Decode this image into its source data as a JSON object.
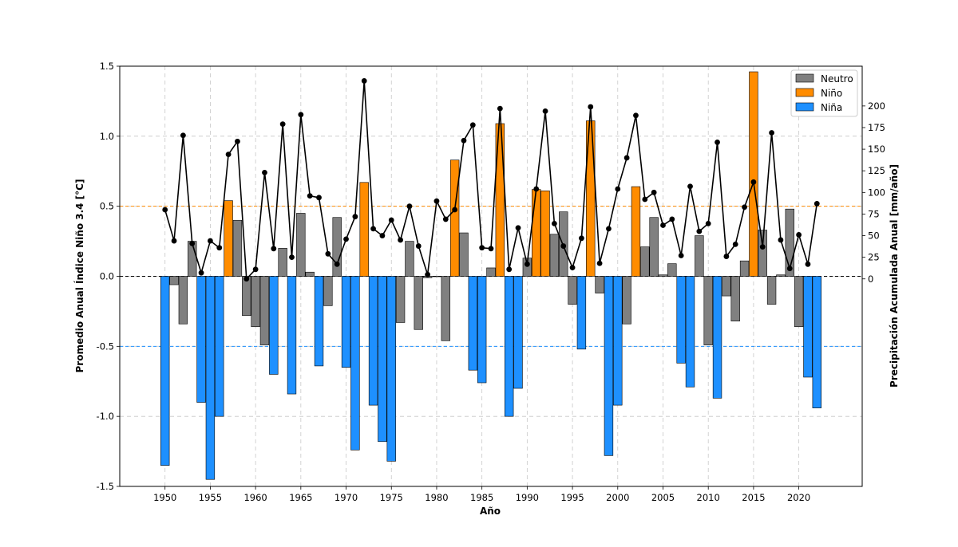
{
  "chart_data": {
    "type": "bar",
    "title": "",
    "xlabel": "Año",
    "ylabel_left": "Promedio Anual Índice Niño 3.4 [°C]",
    "ylabel_right": "Precipitación Acumulada Anual [mm/año]",
    "xlim": [
      1945,
      2027
    ],
    "ylim_left": [
      -1.5,
      1.5
    ],
    "ylim_right": [
      -240,
      246
    ],
    "x_ticks": [
      1950,
      1955,
      1960,
      1965,
      1970,
      1975,
      1980,
      1985,
      1990,
      1995,
      2000,
      2005,
      2010,
      2015,
      2020
    ],
    "y_ticks_left": [
      "-1.5",
      "-1.0",
      "-0.5",
      "0.0",
      "0.5",
      "1.0",
      "1.5"
    ],
    "y_ticks_right": [
      "0",
      "25",
      "50",
      "75",
      "100",
      "125",
      "150",
      "175",
      "200"
    ],
    "grid": true,
    "legend_position": "top-right",
    "thresholds": [
      {
        "value": 0.5,
        "color": "#ff8c00",
        "style": "dashed"
      },
      {
        "value": -0.5,
        "color": "#1e90ff",
        "style": "dashed"
      },
      {
        "value": 0,
        "color": "#000000",
        "style": "dashed"
      }
    ],
    "classes": {
      "Neutro": {
        "label": "Neutro",
        "color": "#808080"
      },
      "Nino": {
        "label": "Niño",
        "color": "#ff8c00"
      },
      "Nina": {
        "label": "Niña",
        "color": "#1e90ff"
      }
    },
    "legend": [
      "Neutro",
      "Niño",
      "Niña"
    ],
    "bars": [
      {
        "year": 1950,
        "value": -1.35,
        "class": "Nina"
      },
      {
        "year": 1951,
        "value": -0.06,
        "class": "Neutro"
      },
      {
        "year": 1952,
        "value": -0.34,
        "class": "Neutro"
      },
      {
        "year": 1953,
        "value": 0.25,
        "class": "Neutro"
      },
      {
        "year": 1954,
        "value": -0.9,
        "class": "Nina"
      },
      {
        "year": 1955,
        "value": -1.45,
        "class": "Nina"
      },
      {
        "year": 1956,
        "value": -1.0,
        "class": "Nina"
      },
      {
        "year": 1957,
        "value": 0.54,
        "class": "Nino"
      },
      {
        "year": 1958,
        "value": 0.4,
        "class": "Neutro"
      },
      {
        "year": 1959,
        "value": -0.28,
        "class": "Neutro"
      },
      {
        "year": 1960,
        "value": -0.36,
        "class": "Neutro"
      },
      {
        "year": 1961,
        "value": -0.49,
        "class": "Neutro"
      },
      {
        "year": 1962,
        "value": -0.7,
        "class": "Nina"
      },
      {
        "year": 1963,
        "value": 0.2,
        "class": "Neutro"
      },
      {
        "year": 1964,
        "value": -0.84,
        "class": "Nina"
      },
      {
        "year": 1965,
        "value": 0.45,
        "class": "Neutro"
      },
      {
        "year": 1966,
        "value": 0.03,
        "class": "Neutro"
      },
      {
        "year": 1967,
        "value": -0.64,
        "class": "Nina"
      },
      {
        "year": 1968,
        "value": -0.21,
        "class": "Neutro"
      },
      {
        "year": 1969,
        "value": 0.42,
        "class": "Neutro"
      },
      {
        "year": 1970,
        "value": -0.65,
        "class": "Nina"
      },
      {
        "year": 1971,
        "value": -1.24,
        "class": "Nina"
      },
      {
        "year": 1972,
        "value": 0.67,
        "class": "Nino"
      },
      {
        "year": 1973,
        "value": -0.92,
        "class": "Nina"
      },
      {
        "year": 1974,
        "value": -1.18,
        "class": "Nina"
      },
      {
        "year": 1975,
        "value": -1.32,
        "class": "Nina"
      },
      {
        "year": 1976,
        "value": -0.33,
        "class": "Neutro"
      },
      {
        "year": 1977,
        "value": 0.25,
        "class": "Neutro"
      },
      {
        "year": 1978,
        "value": -0.38,
        "class": "Neutro"
      },
      {
        "year": 1979,
        "value": -0.01,
        "class": "Neutro"
      },
      {
        "year": 1980,
        "value": 0.0,
        "class": "Neutro"
      },
      {
        "year": 1981,
        "value": -0.46,
        "class": "Neutro"
      },
      {
        "year": 1982,
        "value": 0.83,
        "class": "Nino"
      },
      {
        "year": 1983,
        "value": 0.31,
        "class": "Neutro"
      },
      {
        "year": 1984,
        "value": -0.67,
        "class": "Nina"
      },
      {
        "year": 1985,
        "value": -0.76,
        "class": "Nina"
      },
      {
        "year": 1986,
        "value": 0.06,
        "class": "Neutro"
      },
      {
        "year": 1987,
        "value": 1.09,
        "class": "Nino"
      },
      {
        "year": 1988,
        "value": -1.0,
        "class": "Nina"
      },
      {
        "year": 1989,
        "value": -0.8,
        "class": "Nina"
      },
      {
        "year": 1990,
        "value": 0.13,
        "class": "Neutro"
      },
      {
        "year": 1991,
        "value": 0.62,
        "class": "Nino"
      },
      {
        "year": 1992,
        "value": 0.61,
        "class": "Nino"
      },
      {
        "year": 1993,
        "value": 0.3,
        "class": "Neutro"
      },
      {
        "year": 1994,
        "value": 0.46,
        "class": "Neutro"
      },
      {
        "year": 1995,
        "value": -0.2,
        "class": "Neutro"
      },
      {
        "year": 1996,
        "value": -0.52,
        "class": "Nina"
      },
      {
        "year": 1997,
        "value": 1.11,
        "class": "Nino"
      },
      {
        "year": 1998,
        "value": -0.12,
        "class": "Neutro"
      },
      {
        "year": 1999,
        "value": -1.28,
        "class": "Nina"
      },
      {
        "year": 2000,
        "value": -0.92,
        "class": "Nina"
      },
      {
        "year": 2001,
        "value": -0.34,
        "class": "Neutro"
      },
      {
        "year": 2002,
        "value": 0.64,
        "class": "Nino"
      },
      {
        "year": 2003,
        "value": 0.21,
        "class": "Neutro"
      },
      {
        "year": 2004,
        "value": 0.42,
        "class": "Neutro"
      },
      {
        "year": 2005,
        "value": 0.01,
        "class": "Neutro"
      },
      {
        "year": 2006,
        "value": 0.09,
        "class": "Neutro"
      },
      {
        "year": 2007,
        "value": -0.62,
        "class": "Nina"
      },
      {
        "year": 2008,
        "value": -0.79,
        "class": "Nina"
      },
      {
        "year": 2009,
        "value": 0.29,
        "class": "Neutro"
      },
      {
        "year": 2010,
        "value": -0.49,
        "class": "Neutro"
      },
      {
        "year": 2011,
        "value": -0.87,
        "class": "Nina"
      },
      {
        "year": 2012,
        "value": -0.14,
        "class": "Neutro"
      },
      {
        "year": 2013,
        "value": -0.32,
        "class": "Neutro"
      },
      {
        "year": 2014,
        "value": 0.11,
        "class": "Neutro"
      },
      {
        "year": 2015,
        "value": 1.46,
        "class": "Nino"
      },
      {
        "year": 2016,
        "value": 0.33,
        "class": "Neutro"
      },
      {
        "year": 2017,
        "value": -0.2,
        "class": "Neutro"
      },
      {
        "year": 2018,
        "value": 0.01,
        "class": "Neutro"
      },
      {
        "year": 2019,
        "value": 0.48,
        "class": "Neutro"
      },
      {
        "year": 2020,
        "value": -0.36,
        "class": "Neutro"
      },
      {
        "year": 2021,
        "value": -0.72,
        "class": "Nina"
      },
      {
        "year": 2022,
        "value": -0.94,
        "class": "Nina"
      }
    ],
    "precip_line": {
      "color": "#000000",
      "x": [
        1950,
        1951,
        1952,
        1953,
        1954,
        1955,
        1956,
        1957,
        1958,
        1959,
        1960,
        1961,
        1962,
        1963,
        1964,
        1965,
        1966,
        1967,
        1968,
        1969,
        1970,
        1971,
        1972,
        1973,
        1974,
        1975,
        1976,
        1977,
        1978,
        1979,
        1980,
        1981,
        1982,
        1983,
        1984,
        1985,
        1986,
        1987,
        1988,
        1989,
        1990,
        1991,
        1992,
        1993,
        1994,
        1995,
        1996,
        1997,
        1998,
        1999,
        2000,
        2001,
        2002,
        2003,
        2004,
        2005,
        2006,
        2007,
        2008,
        2009,
        2010,
        2011,
        2012,
        2013,
        2014,
        2015,
        2016,
        2017,
        2018,
        2019,
        2020,
        2021,
        2022
      ],
      "y": [
        80,
        44,
        166,
        41,
        7,
        44,
        36,
        144,
        159,
        0,
        11,
        123,
        35,
        179,
        25,
        190,
        96,
        94,
        29,
        17,
        46,
        72,
        229,
        58,
        50,
        68,
        45,
        84,
        38,
        5,
        90,
        69,
        80,
        160,
        178,
        36,
        35,
        197,
        11,
        59,
        17,
        104,
        194,
        64,
        38,
        13,
        47,
        199,
        18,
        58,
        104,
        140,
        189,
        92,
        100,
        62,
        69,
        27,
        107,
        55,
        64,
        158,
        26,
        40,
        83,
        112,
        37,
        169,
        45,
        12,
        51,
        17,
        87
      ]
    }
  }
}
